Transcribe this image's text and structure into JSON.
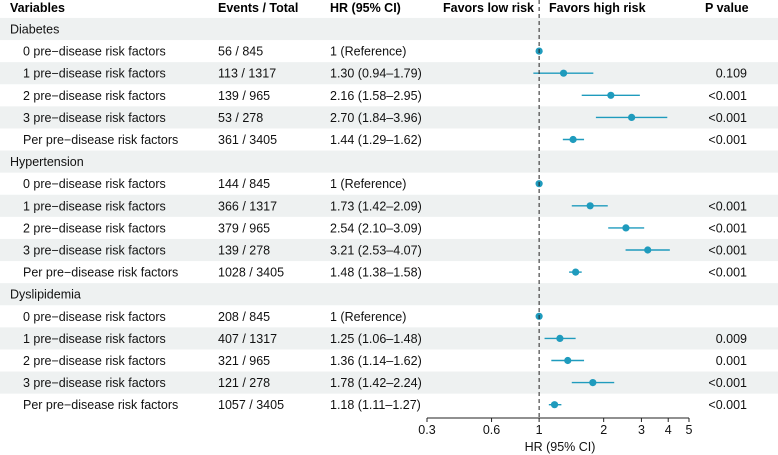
{
  "headers": {
    "variables": "Variables",
    "events": "Events / Total",
    "hr": "HR (95% CI)",
    "favors_low": "Favors low risk",
    "favors_high": "Favors high risk",
    "pvalue": "P value"
  },
  "chart_data": {
    "type": "forest",
    "title": "",
    "xlabel": "HR (95% CI)",
    "x_scale": "log",
    "xlim": [
      0.3,
      5
    ],
    "x_ticks": [
      {
        "value": 0.3,
        "label": "0.3"
      },
      {
        "value": 0.6,
        "label": "0.6"
      },
      {
        "value": 1,
        "label": "1"
      },
      {
        "value": 2,
        "label": "2"
      },
      {
        "value": 3,
        "label": "3"
      },
      {
        "value": 4,
        "label": "4"
      },
      {
        "value": 5,
        "label": "5"
      }
    ],
    "reference_line": 1,
    "groups": [
      {
        "name": "Diabetes",
        "rows": [
          {
            "label": "0 pre−disease risk factors",
            "events": "56 / 845",
            "hr_text": "1 (Reference)",
            "hr": 1.0,
            "lo": 1.0,
            "hi": 1.0,
            "p": ""
          },
          {
            "label": "1 pre−disease risk factors",
            "events": "113 / 1317",
            "hr_text": "1.30 (0.94–1.79)",
            "hr": 1.3,
            "lo": 0.94,
            "hi": 1.79,
            "p": "0.109"
          },
          {
            "label": "2 pre−disease risk factors",
            "events": "139 / 965",
            "hr_text": "2.16 (1.58–2.95)",
            "hr": 2.16,
            "lo": 1.58,
            "hi": 2.95,
            "p": "<0.001"
          },
          {
            "label": "3 pre−disease risk factors",
            "events": "53 / 278",
            "hr_text": "2.70 (1.84–3.96)",
            "hr": 2.7,
            "lo": 1.84,
            "hi": 3.96,
            "p": "<0.001"
          },
          {
            "label": "Per pre−disease risk factors",
            "events": "361 / 3405",
            "hr_text": "1.44 (1.29–1.62)",
            "hr": 1.44,
            "lo": 1.29,
            "hi": 1.62,
            "p": "<0.001"
          }
        ]
      },
      {
        "name": "Hypertension",
        "rows": [
          {
            "label": "0 pre−disease risk factors",
            "events": "144 / 845",
            "hr_text": "1 (Reference)",
            "hr": 1.0,
            "lo": 1.0,
            "hi": 1.0,
            "p": ""
          },
          {
            "label": "1 pre−disease risk factors",
            "events": "366 / 1317",
            "hr_text": "1.73 (1.42–2.09)",
            "hr": 1.73,
            "lo": 1.42,
            "hi": 2.09,
            "p": "<0.001"
          },
          {
            "label": "2 pre−disease risk factors",
            "events": "379 / 965",
            "hr_text": "2.54 (2.10–3.09)",
            "hr": 2.54,
            "lo": 2.1,
            "hi": 3.09,
            "p": "<0.001"
          },
          {
            "label": "3 pre−disease risk factors",
            "events": "139 / 278",
            "hr_text": "3.21 (2.53–4.07)",
            "hr": 3.21,
            "lo": 2.53,
            "hi": 4.07,
            "p": "<0.001"
          },
          {
            "label": "Per pre−disease risk factors",
            "events": "1028 / 3405",
            "hr_text": "1.48 (1.38–1.58)",
            "hr": 1.48,
            "lo": 1.38,
            "hi": 1.58,
            "p": "<0.001"
          }
        ]
      },
      {
        "name": "Dyslipidemia",
        "rows": [
          {
            "label": "0 pre−disease risk factors",
            "events": "208 / 845",
            "hr_text": "1 (Reference)",
            "hr": 1.0,
            "lo": 1.0,
            "hi": 1.0,
            "p": ""
          },
          {
            "label": "1 pre−disease risk factors",
            "events": "407 / 1317",
            "hr_text": "1.25 (1.06–1.48)",
            "hr": 1.25,
            "lo": 1.06,
            "hi": 1.48,
            "p": "0.009"
          },
          {
            "label": "2 pre−disease risk factors",
            "events": "321 / 965",
            "hr_text": "1.36 (1.14–1.62)",
            "hr": 1.36,
            "lo": 1.14,
            "hi": 1.62,
            "p": "0.001"
          },
          {
            "label": "3 pre−disease risk factors",
            "events": "121 / 278",
            "hr_text": "1.78 (1.42–2.24)",
            "hr": 1.78,
            "lo": 1.42,
            "hi": 2.24,
            "p": "<0.001"
          },
          {
            "label": "Per pre−disease risk factors",
            "events": "1057 / 3405",
            "hr_text": "1.18 (1.11–1.27)",
            "hr": 1.18,
            "lo": 1.11,
            "hi": 1.27,
            "p": "<0.001"
          }
        ]
      }
    ]
  },
  "colors": {
    "point": "#1f9bbd",
    "stripe": "#eef1f1",
    "axis": "#222222",
    "text": "#111111"
  }
}
